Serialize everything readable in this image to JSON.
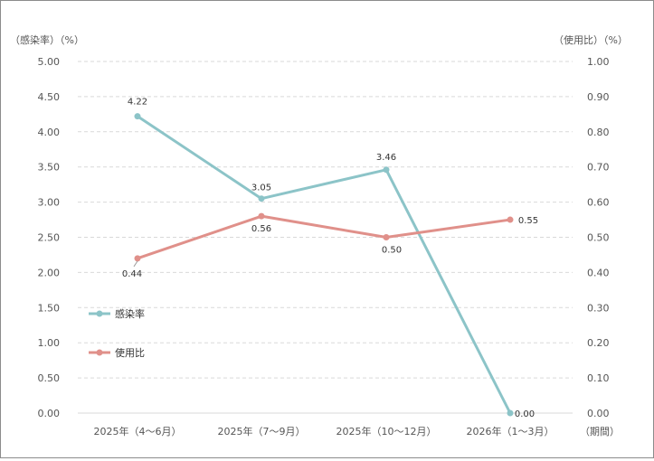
{
  "chart_data": {
    "type": "line",
    "title": "",
    "categories": [
      "2025年（4～6月）",
      "2025年（7～9月）",
      "2025年（10～12月）",
      "2026年（1～3月）"
    ],
    "xlabel": "（期間）",
    "y_left": {
      "label": "（感染率）（%）",
      "ylim": [
        0,
        5
      ],
      "ticks": [
        "0.00",
        "0.50",
        "1.00",
        "1.50",
        "2.00",
        "2.50",
        "3.00",
        "3.50",
        "4.00",
        "4.50",
        "5.00"
      ]
    },
    "y_right": {
      "label": "（使用比）（%）",
      "ylim": [
        0,
        1
      ],
      "ticks": [
        "0.00",
        "0.10",
        "0.20",
        "0.30",
        "0.40",
        "0.50",
        "0.60",
        "0.70",
        "0.80",
        "0.90",
        "1.00"
      ]
    },
    "grid": true,
    "series": [
      {
        "name": "感染率",
        "axis": "left",
        "color": "#8cc4c8",
        "values": [
          4.22,
          3.05,
          3.46,
          0.0
        ],
        "labels": [
          "4.22",
          "3.05",
          "3.46",
          "0.00"
        ]
      },
      {
        "name": "使用比",
        "axis": "right",
        "color": "#e0908a",
        "values": [
          0.44,
          0.56,
          0.5,
          0.55
        ],
        "labels": [
          "0.44",
          "0.56",
          "0.50",
          "0.55"
        ]
      }
    ],
    "legend_position": "left-middle"
  }
}
